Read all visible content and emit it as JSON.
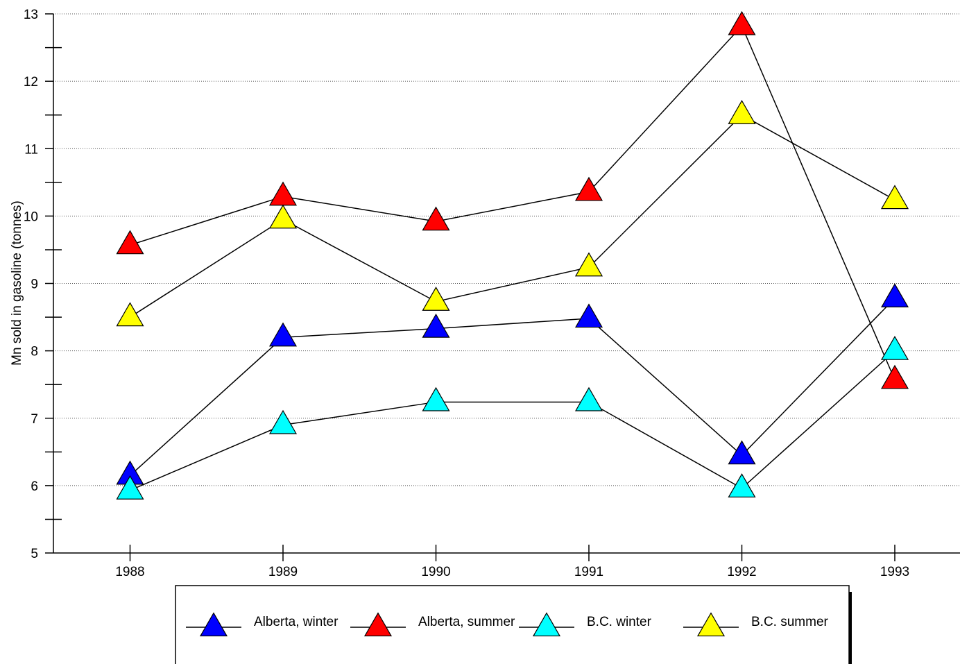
{
  "chart_data": {
    "type": "line",
    "title": "",
    "xlabel": "",
    "ylabel": "Mn sold in gasoline (tonnes)",
    "categories": [
      "1988",
      "1989",
      "1990",
      "1991",
      "1992",
      "1993"
    ],
    "ylim": [
      5,
      13
    ],
    "yticks": [
      "5",
      "6",
      "7",
      "8",
      "9",
      "10",
      "11",
      "12",
      "13"
    ],
    "grid": "horizontal dotted at major ticks",
    "legend_position": "bottom",
    "marker": "triangle",
    "series": [
      {
        "name": "Alberta, winter",
        "color": "#0000ff",
        "values": [
          6.15,
          8.2,
          8.33,
          8.48,
          6.45,
          8.78
        ]
      },
      {
        "name": "Alberta, summer",
        "color": "#ff0000",
        "values": [
          9.57,
          10.29,
          9.92,
          10.36,
          12.82,
          7.57
        ]
      },
      {
        "name": "B.C. winter",
        "color": "#00ffff",
        "values": [
          5.93,
          6.9,
          7.24,
          7.24,
          5.96,
          8.0
        ]
      },
      {
        "name": "B.C. summer",
        "color": "#ffff00",
        "values": [
          8.5,
          9.95,
          8.73,
          9.24,
          11.5,
          10.24
        ]
      }
    ]
  }
}
